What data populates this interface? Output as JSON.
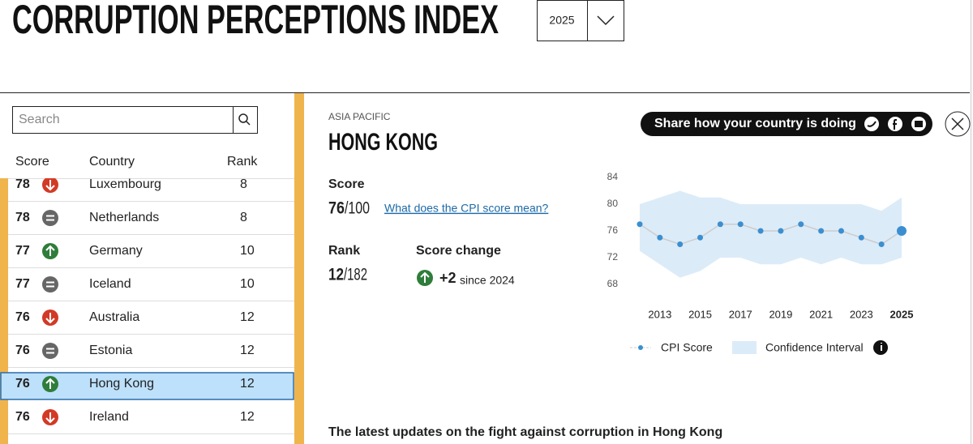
{
  "header": {
    "title": "CORRUPTION PERCEPTIONS INDEX",
    "year": "2025"
  },
  "search": {
    "placeholder": "Search"
  },
  "table": {
    "columns": [
      "Score",
      "Country",
      "Rank"
    ],
    "rows": [
      {
        "score": "78",
        "country": "Luxembourg",
        "rank": "8",
        "trend": "down"
      },
      {
        "score": "78",
        "country": "Netherlands",
        "rank": "8",
        "trend": "equal"
      },
      {
        "score": "77",
        "country": "Germany",
        "rank": "10",
        "trend": "up"
      },
      {
        "score": "77",
        "country": "Iceland",
        "rank": "10",
        "trend": "equal"
      },
      {
        "score": "76",
        "country": "Australia",
        "rank": "12",
        "trend": "down"
      },
      {
        "score": "76",
        "country": "Estonia",
        "rank": "12",
        "trend": "equal"
      },
      {
        "score": "76",
        "country": "Hong Kong",
        "rank": "12",
        "trend": "up",
        "selected": true
      },
      {
        "score": "76",
        "country": "Ireland",
        "rank": "12",
        "trend": "down"
      }
    ]
  },
  "detail": {
    "region": "ASIA PACIFIC",
    "country": "HONG KONG",
    "score": {
      "label": "Score",
      "value": "76",
      "out_of": "/100",
      "link": "What does the CPI score mean?"
    },
    "rank": {
      "label": "Rank",
      "value": "12",
      "out_of": "/182"
    },
    "change": {
      "label": "Score change",
      "value": "+2",
      "since": "since 2024",
      "trend": "up"
    },
    "share": "Share how your country is doing",
    "latest": "The latest updates on the fight against corruption in Hong Kong"
  },
  "chart_data": {
    "type": "line",
    "x": [
      2012,
      2013,
      2014,
      2015,
      2016,
      2017,
      2018,
      2019,
      2020,
      2021,
      2022,
      2023,
      2024,
      2025
    ],
    "xlim": [
      2012,
      2025
    ],
    "xticks": [
      2013,
      2015,
      2017,
      2019,
      2021,
      2023,
      2025
    ],
    "ylim": [
      68,
      84
    ],
    "yticks": [
      84,
      80,
      76,
      72,
      68
    ],
    "series": [
      {
        "name": "CPI Score",
        "color": "#3b8fd0",
        "values": [
          77,
          75,
          74,
          75,
          77,
          77,
          76,
          76,
          77,
          76,
          76,
          75,
          74,
          76
        ]
      }
    ],
    "confidence_interval": {
      "name": "Confidence Interval",
      "color": "#dcebf8",
      "upper": [
        80,
        81,
        82,
        81,
        81,
        80,
        80,
        80,
        80,
        80,
        80,
        80,
        79,
        81
      ],
      "lower": [
        73,
        71,
        69,
        70,
        72,
        72,
        71,
        71,
        72,
        71,
        72,
        71,
        71,
        72
      ]
    }
  }
}
